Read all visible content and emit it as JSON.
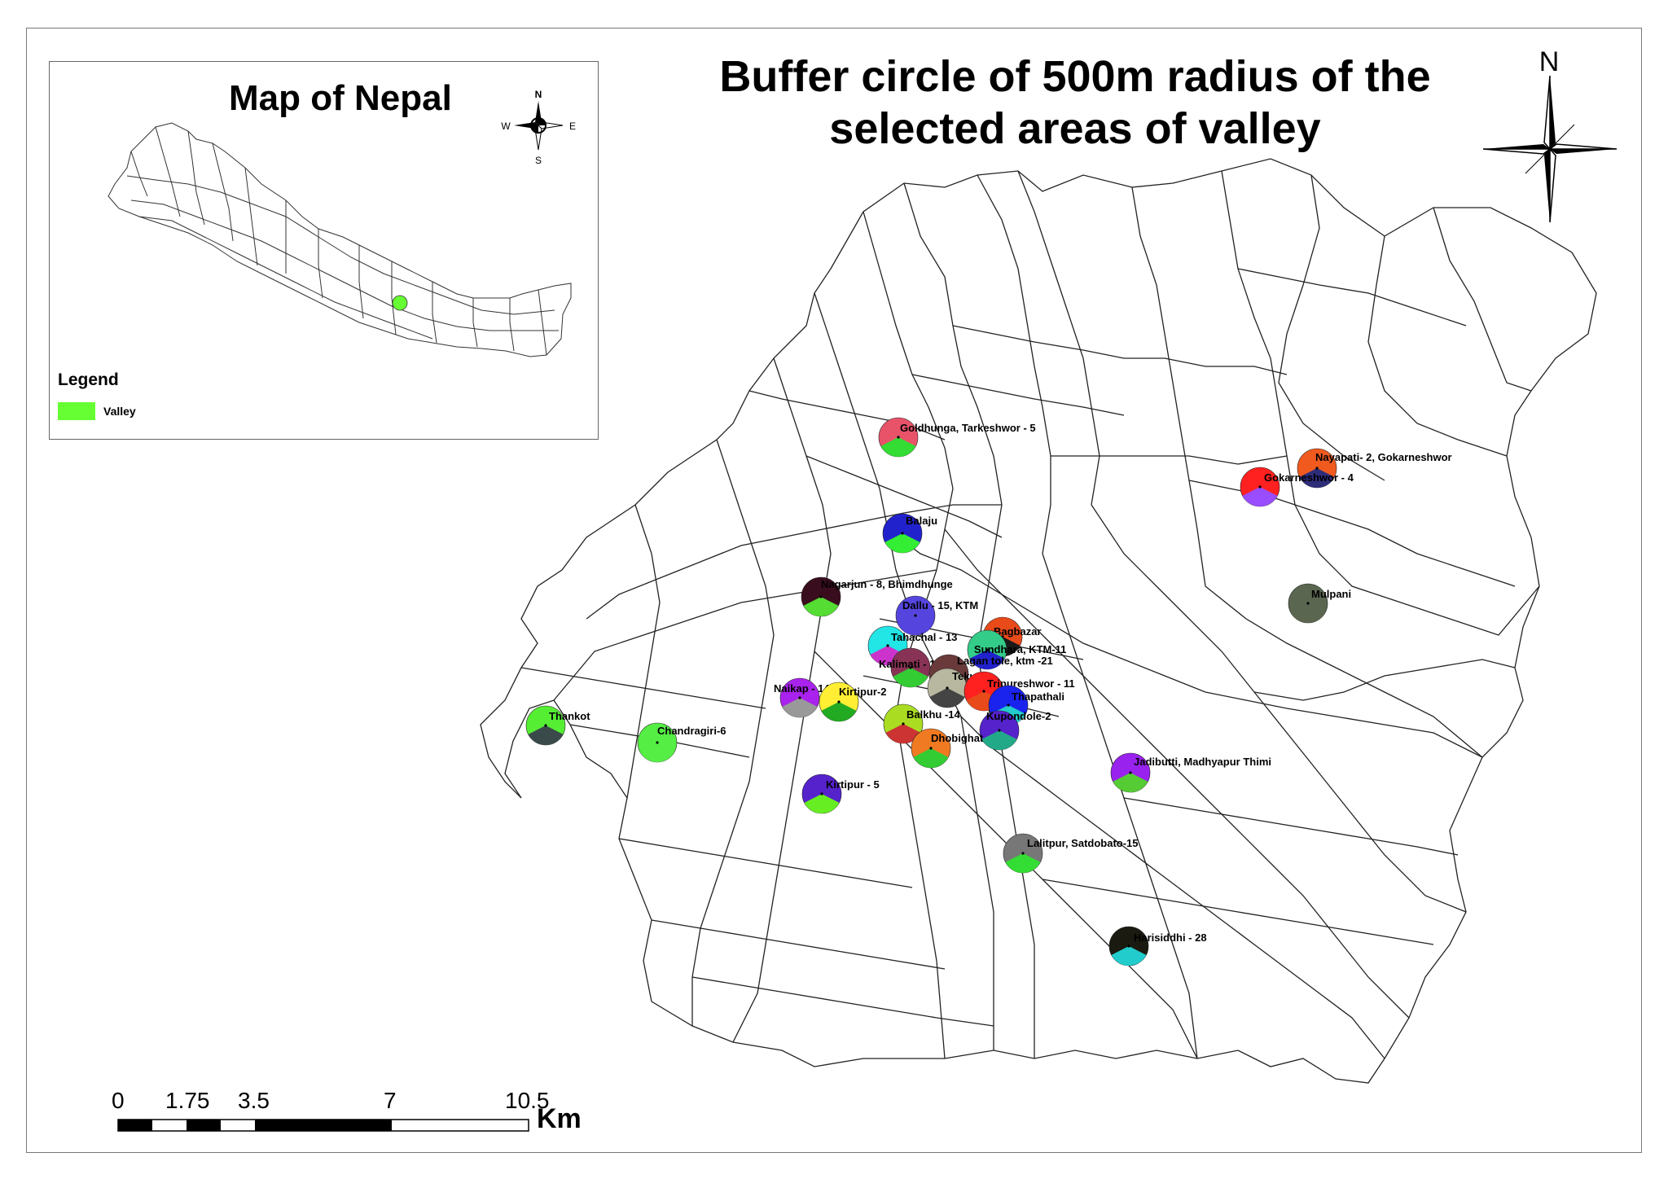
{
  "title_line1": "Buffer circle of 500m radius of the",
  "title_line2": "selected areas of valley",
  "inset": {
    "title": "Map of Nepal",
    "compass": {
      "n": "N",
      "s": "S",
      "e": "E",
      "w": "W"
    },
    "legend_title": "Legend",
    "legend_item": "Valley",
    "legend_color": "#66ff33"
  },
  "north_arrow_label": "N",
  "scale_bar": {
    "ticks": [
      "0",
      "1.75",
      "3.5",
      "7",
      "10.5"
    ],
    "unit": "Km"
  },
  "sites": [
    {
      "name": "Goldhunga, Tarkeshwor - 5",
      "color": "#e8536a",
      "color2": "#33dd33"
    },
    {
      "name": "Nayapati- 2, Gokarneshwor",
      "color": "#f05a1e",
      "color2": "#2d2d7a"
    },
    {
      "name": "Gokarneshwor - 4",
      "color": "#ff2020",
      "color2": "#9a4cff"
    },
    {
      "name": "Balaju",
      "color": "#2222cc",
      "color2": "#33ee33"
    },
    {
      "name": "Nagarjun - 8, Bhimdhunge",
      "color": "#3a0d1e",
      "color2": "#55dd33"
    },
    {
      "name": "Mulpani",
      "color": "#5a6650",
      "color2": "#5a6650"
    },
    {
      "name": "Dallu - 15, KTM",
      "color": "#5544dd",
      "color2": "#5544dd"
    },
    {
      "name": "Bagbazar",
      "color": "#e84a1a",
      "color2": "#1a1a1a"
    },
    {
      "name": "Tahachal - 13",
      "color": "#22e5e5",
      "color2": "#cc33cc"
    },
    {
      "name": "Sundhara, KTM-11",
      "color": "#33cc88",
      "color2": "#2222cc"
    },
    {
      "name": "Kalimati - 13",
      "color": "#883355",
      "color2": "#33cc33"
    },
    {
      "name": "Lagan tole, ktm -21",
      "color": "#6a3a3a",
      "color2": "#2222cc"
    },
    {
      "name": "Teku",
      "color": "#b8b8a0",
      "color2": "#444444"
    },
    {
      "name": "Naikap - 14",
      "color": "#aa22ee",
      "color2": "#999999"
    },
    {
      "name": "Kirtipur-2",
      "color": "#ffee33",
      "color2": "#22aa22"
    },
    {
      "name": "Tripureshwor - 11",
      "color": "#ff2020",
      "color2": "#e84a1a"
    },
    {
      "name": "Thapathali",
      "color": "#1a22ee",
      "color2": "#22cccc"
    },
    {
      "name": "Thankot",
      "color": "#55ee33",
      "color2": "#3a4a4a"
    },
    {
      "name": "Balkhu -14",
      "color": "#aadd22",
      "color2": "#cc3333"
    },
    {
      "name": "Kupondole-2",
      "color": "#5522cc",
      "color2": "#22aa88"
    },
    {
      "name": "Chandragiri-6",
      "color": "#55ee44",
      "color2": "#55ee44"
    },
    {
      "name": "Dhobighat",
      "color": "#f07a22",
      "color2": "#33cc33"
    },
    {
      "name": "Jadibutti, Madhyapur Thimi",
      "color": "#9922ee",
      "color2": "#55cc33"
    },
    {
      "name": "Kirtipur - 5",
      "color": "#5522cc",
      "color2": "#66ee22"
    },
    {
      "name": "Lalitpur, Satdobato-15",
      "color": "#777777",
      "color2": "#33dd33"
    },
    {
      "name": "Harisiddhi - 28",
      "color": "#1a1a10",
      "color2": "#22cccc"
    }
  ]
}
